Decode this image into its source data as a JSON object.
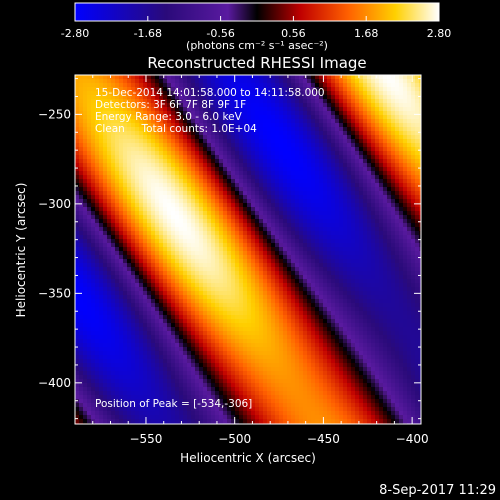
{
  "colorbar": {
    "ticks": [
      "-2.80",
      "-1.68",
      "-0.56",
      "0.56",
      "1.68",
      "2.80"
    ],
    "range": [
      -2.8,
      2.8
    ],
    "unit_label": "(photons cm⁻² s⁻¹ asec⁻²)"
  },
  "chart_data": {
    "type": "heatmap",
    "title": "Reconstructed RHESSI Image",
    "xlabel": "Heliocentric X (arcsec)",
    "ylabel": "Heliocentric Y (arcsec)",
    "xlim": [
      -590,
      -395
    ],
    "ylim": [
      -423,
      -228
    ],
    "x_ticks": [
      -550,
      -500,
      -450,
      -400
    ],
    "y_ticks": [
      -250,
      -300,
      -350,
      -400
    ],
    "x_tick_labels": [
      "−550",
      "−500",
      "−450",
      "−400"
    ],
    "y_tick_labels": [
      "−250",
      "−300",
      "−350",
      "−400"
    ],
    "annotations": [
      "15-Dec-2014 14:01:58.000 to 14:11:58.000",
      "Detectors: 3F 6F 7F 8F 9F 1F",
      "Energy Range: 3.0 - 6.0 keV",
      "Clean     Total counts: 1.0E+04"
    ],
    "peak_label": "Position of Peak = [-534,-306]",
    "peak": [
      -534,
      -306
    ],
    "pattern": {
      "wave_direction": [
        0.82,
        0.57
      ],
      "wavelength_arcsec": 143,
      "amplitude": 2.8
    }
  },
  "footer": {
    "timestamp": "8-Sep-2017 11:29"
  },
  "colors": {
    "background": "#000000",
    "text": "#ffffff"
  }
}
